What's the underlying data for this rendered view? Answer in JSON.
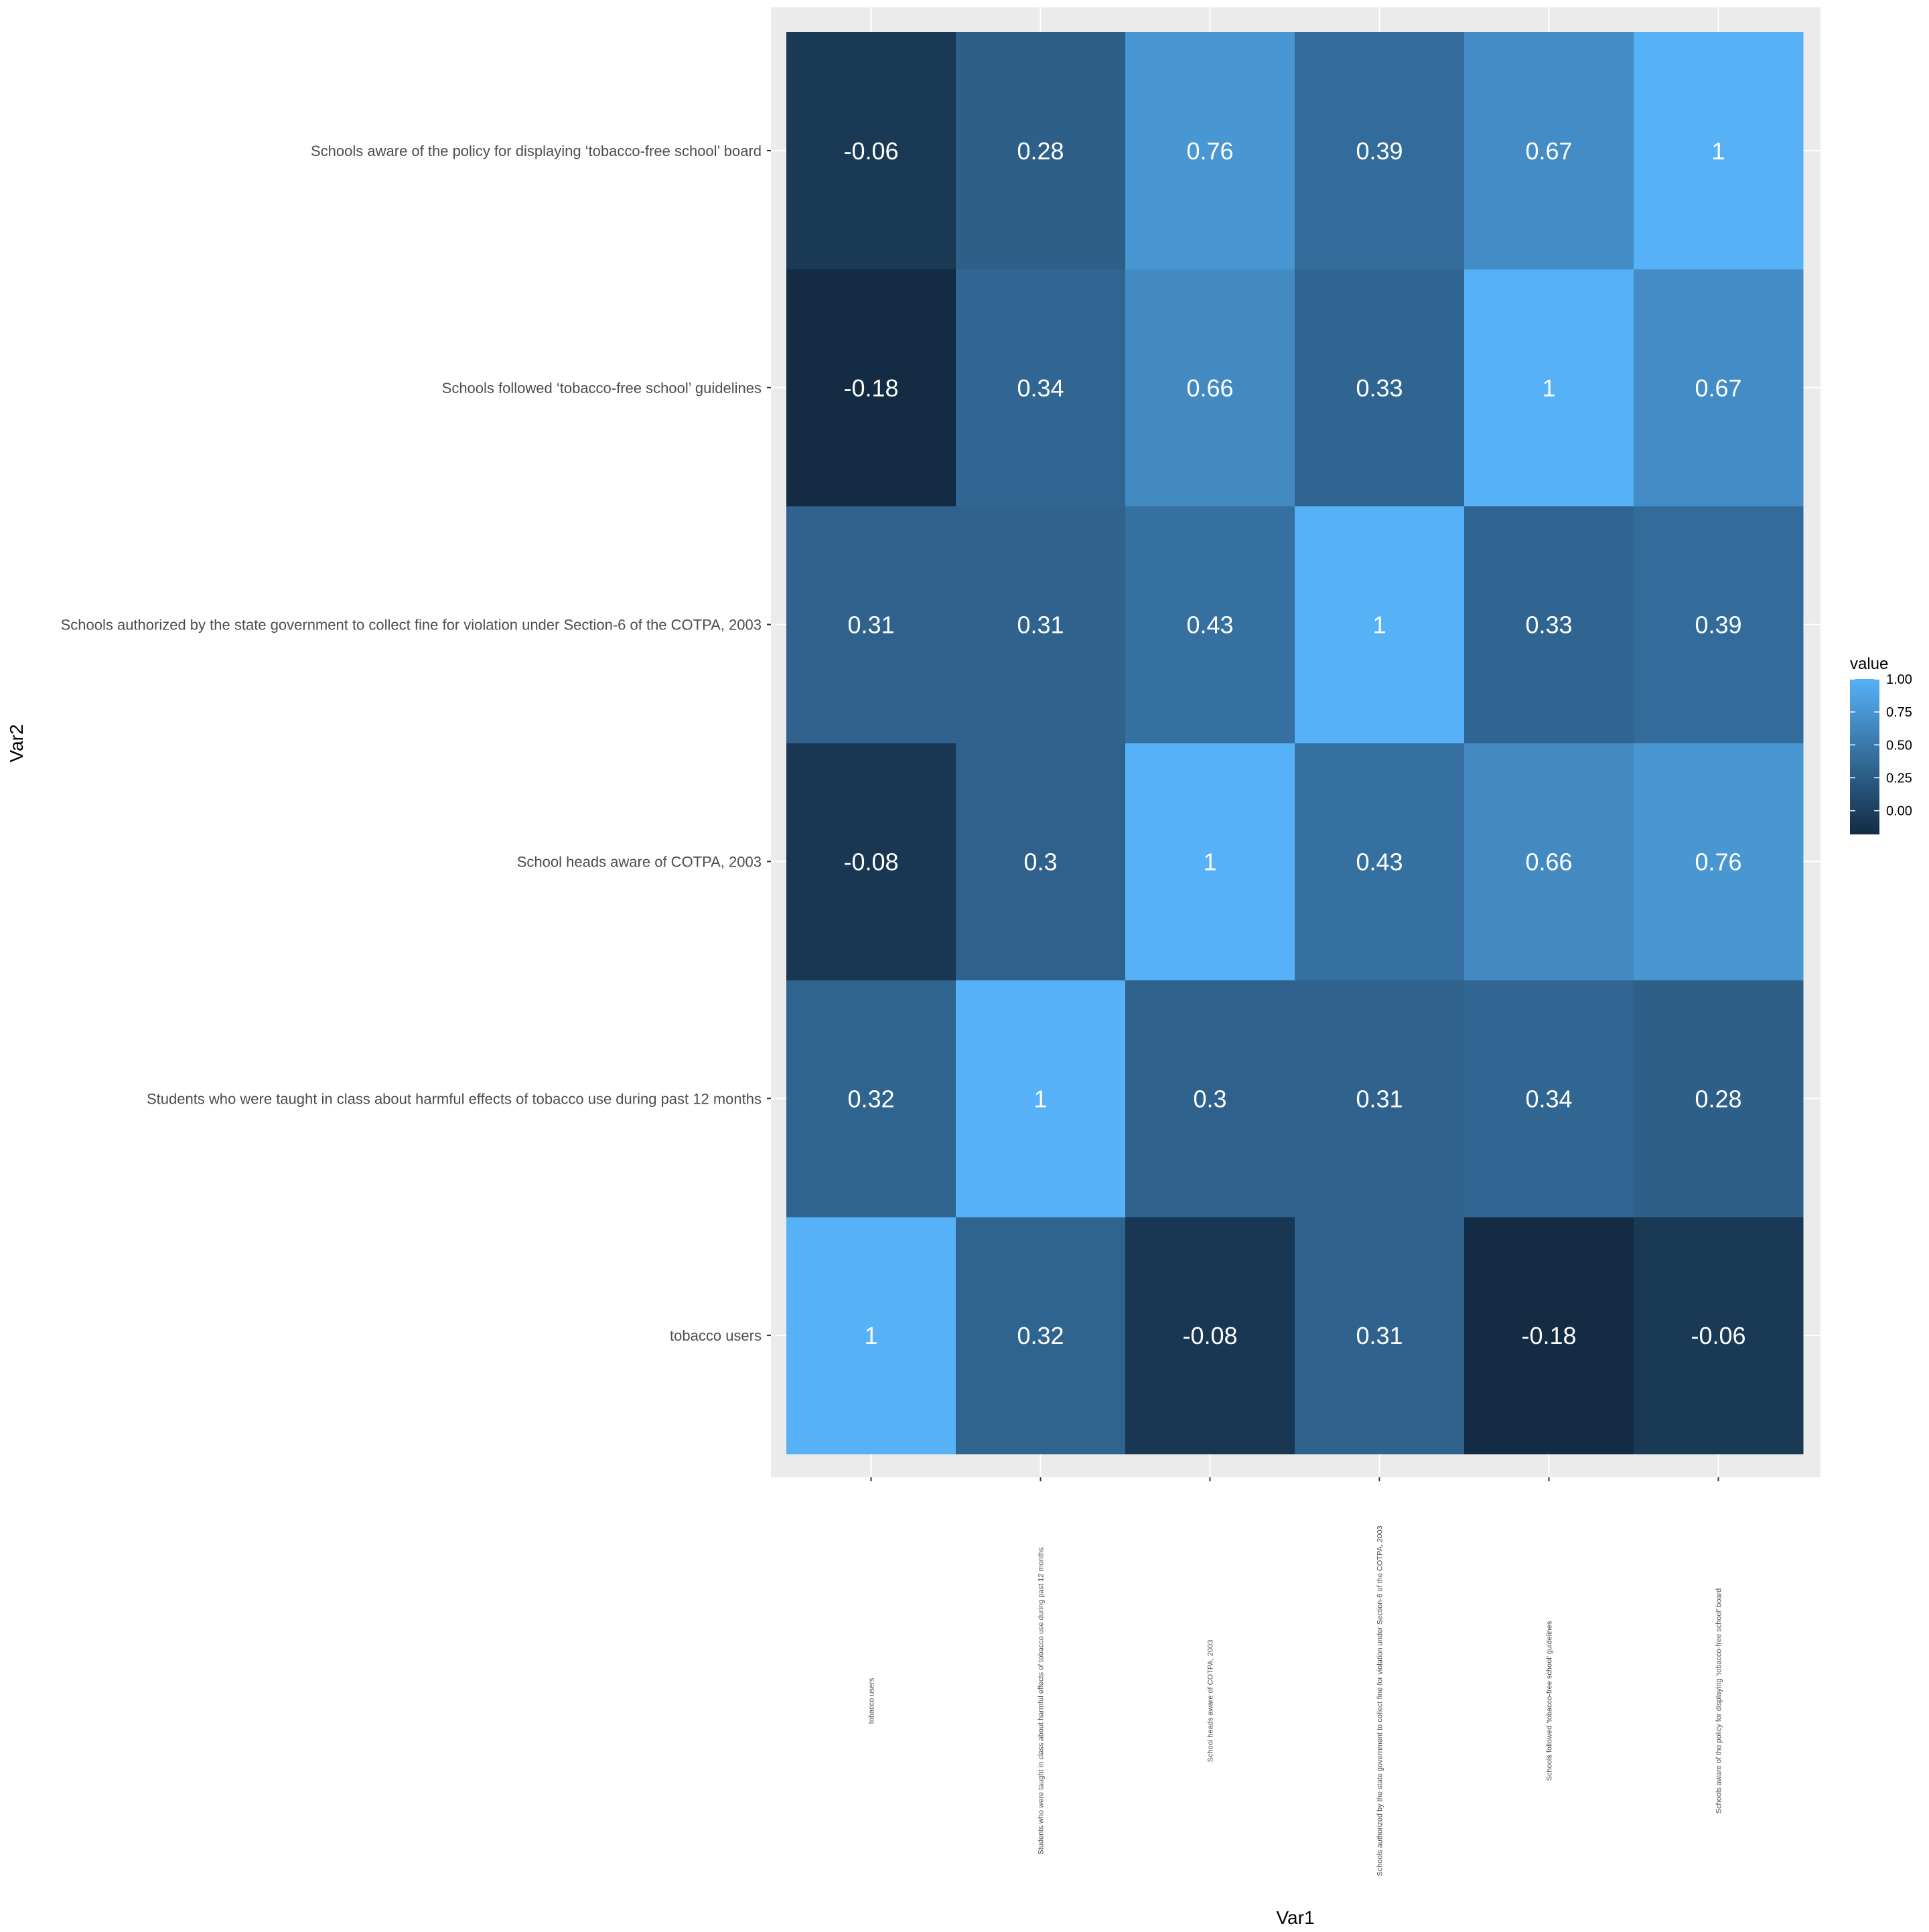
{
  "chart_data": {
    "type": "heatmap",
    "xlabel": "Var1",
    "ylabel": "Var2",
    "categories": [
      "tobacco users",
      "Students who were taught in class about harmful effects of tobacco use during past 12 months",
      "School heads aware of COTPA, 2003",
      "Schools authorized by the state government to collect fine for violation under Section-6 of the COTPA, 2003",
      "Schools followed ‘tobacco-free school’ guidelines",
      "Schools aware of the policy for displaying ‘tobacco-free school’ board"
    ],
    "values": [
      [
        1,
        0.32,
        -0.08,
        0.31,
        -0.18,
        -0.06
      ],
      [
        0.32,
        1,
        0.3,
        0.31,
        0.34,
        0.28
      ],
      [
        -0.08,
        0.3,
        1,
        0.43,
        0.66,
        0.76
      ],
      [
        0.31,
        0.31,
        0.43,
        1,
        0.33,
        0.39
      ],
      [
        -0.18,
        0.34,
        0.66,
        0.33,
        1,
        0.67
      ],
      [
        -0.06,
        0.28,
        0.76,
        0.39,
        0.67,
        1
      ]
    ],
    "value_labels": [
      [
        "1",
        "0.32",
        "-0.08",
        "0.31",
        "-0.18",
        "-0.06"
      ],
      [
        "0.32",
        "1",
        "0.3",
        "0.31",
        "0.34",
        "0.28"
      ],
      [
        "-0.08",
        "0.3",
        "1",
        "0.43",
        "0.66",
        "0.76"
      ],
      [
        "0.31",
        "0.31",
        "0.43",
        "1",
        "0.33",
        "0.39"
      ],
      [
        "-0.18",
        "0.34",
        "0.66",
        "0.33",
        "1",
        "0.67"
      ],
      [
        "-0.06",
        "0.28",
        "0.76",
        "0.39",
        "0.67",
        "1"
      ]
    ],
    "legend": {
      "title": "value",
      "placement": "right",
      "ticks": [
        1.0,
        0.75,
        0.5,
        0.25,
        0.0
      ],
      "tick_labels": [
        "1.00",
        "0.75",
        "0.50",
        "0.25",
        "0.00"
      ],
      "range": [
        -0.18,
        1.0
      ],
      "color_low": "#132B43",
      "color_high": "#56B1F7"
    },
    "grid": true,
    "panel_background": "#EBEBEB",
    "gridline_color": "#FFFFFF"
  }
}
